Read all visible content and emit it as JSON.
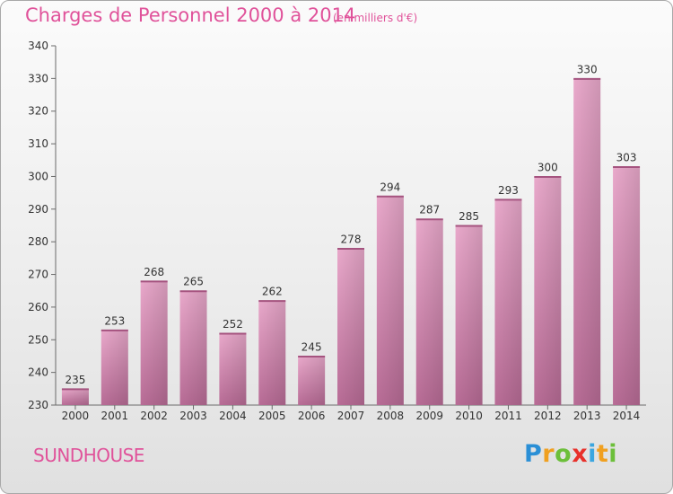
{
  "chart_data": {
    "type": "bar",
    "title": "Charges de Personnel 2000 à 2014",
    "subtitle": "(en milliers d'€)",
    "categories": [
      "2000",
      "2001",
      "2002",
      "2003",
      "2004",
      "2005",
      "2006",
      "2007",
      "2008",
      "2009",
      "2010",
      "2011",
      "2012",
      "2013",
      "2014"
    ],
    "values": [
      235,
      253,
      268,
      265,
      252,
      262,
      245,
      278,
      294,
      287,
      285,
      293,
      300,
      330,
      303
    ],
    "ylim": [
      230,
      340
    ],
    "yticks": [
      230,
      240,
      250,
      260,
      270,
      280,
      290,
      300,
      310,
      320,
      330,
      340
    ],
    "grid": false,
    "xlabel": "",
    "ylabel": "",
    "bar_color": "#d98bb5",
    "text_color": "#e0529a"
  },
  "commune": "SUNDHOUSE",
  "brand": {
    "letters": [
      "P",
      "r",
      "o",
      "x",
      "i",
      "t",
      "i"
    ],
    "colors": [
      "#2a8fd6",
      "#f0a020",
      "#6cbf3a",
      "#e8302a",
      "#3aa6e0",
      "#f0a020",
      "#6cbf3a"
    ]
  }
}
